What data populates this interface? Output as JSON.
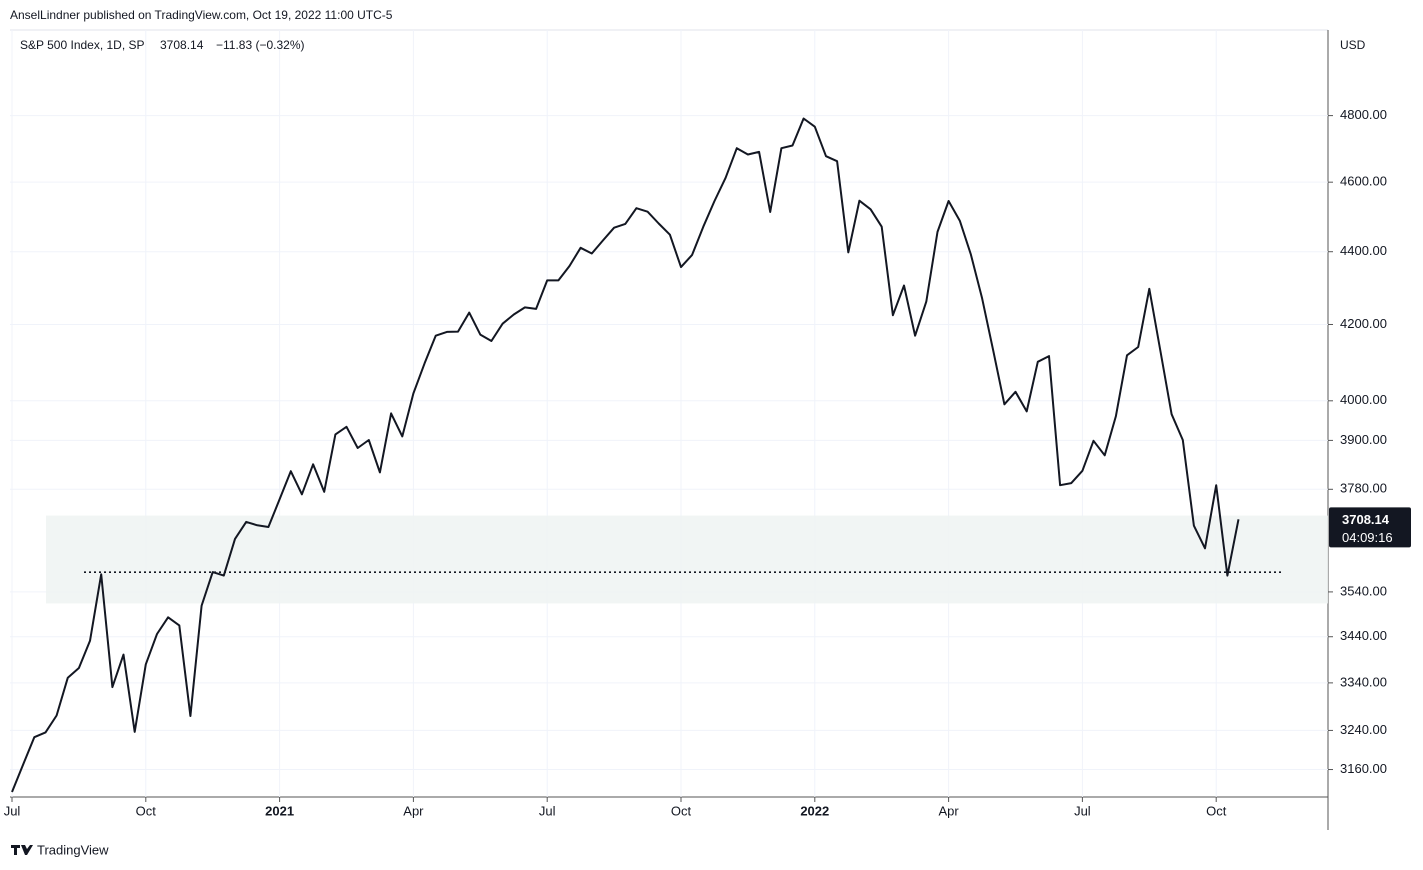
{
  "chart_data": {
    "type": "line",
    "header": "AnselLindner published on TradingView.com, Oct 19, 2022 11:00 UTC-5",
    "legend_change": "−11.83 (−0.32%)",
    "currency": "USD",
    "countdown": "04:09:16",
    "brand": "TradingView",
    "log_scale": true,
    "grid": true,
    "zone": [
      3514,
      3717
    ],
    "support_level": 3585,
    "categories": [
      "Jul",
      null,
      null,
      null,
      null,
      null,
      null,
      null,
      null,
      null,
      null,
      null,
      "Oct",
      null,
      null,
      null,
      null,
      null,
      null,
      null,
      null,
      null,
      null,
      null,
      "2021",
      null,
      null,
      null,
      null,
      null,
      null,
      null,
      null,
      null,
      null,
      null,
      "Apr",
      null,
      null,
      null,
      null,
      null,
      null,
      null,
      null,
      null,
      null,
      null,
      "Jul",
      null,
      null,
      null,
      null,
      null,
      null,
      null,
      null,
      null,
      null,
      null,
      "Oct",
      null,
      null,
      null,
      null,
      null,
      null,
      null,
      null,
      null,
      null,
      null,
      "2022",
      null,
      null,
      null,
      null,
      null,
      null,
      null,
      null,
      null,
      null,
      null,
      "Apr",
      null,
      null,
      null,
      null,
      null,
      null,
      null,
      null,
      null,
      null,
      null,
      "Jul",
      null,
      null,
      null,
      null,
      null,
      null,
      null,
      null,
      null,
      null,
      null,
      "Oct",
      null,
      null,
      null,
      null,
      null,
      null,
      null,
      null,
      null
    ],
    "series": [
      {
        "name": "S&P 500 Index, 1D, SP",
        "color": "#131722",
        "values": [
          3115,
          3170,
          3226,
          3236,
          3271,
          3351,
          3372,
          3431,
          3580,
          3331,
          3401,
          3237,
          3380,
          3446,
          3483,
          3465,
          3270,
          3509,
          3585,
          3577,
          3662,
          3702,
          3694,
          3690,
          3756,
          3824,
          3768,
          3841,
          3774,
          3915,
          3934,
          3881,
          3901,
          3821,
          3968,
          3910,
          4019,
          4097,
          4170,
          4180,
          4181,
          4232,
          4173,
          4156,
          4202,
          4227,
          4246,
          4242,
          4320,
          4320,
          4360,
          4411,
          4395,
          4432,
          4468,
          4479,
          4524,
          4514,
          4480,
          4448,
          4357,
          4391,
          4471,
          4545,
          4613,
          4701,
          4682,
          4690,
          4513,
          4701,
          4709,
          4791,
          4766,
          4677,
          4662,
          4398,
          4546,
          4521,
          4471,
          4225,
          4306,
          4170,
          4262,
          4456,
          4545,
          4488,
          4392,
          4271,
          4131,
          3991,
          4023,
          3973,
          4101,
          4116,
          3790,
          3795,
          3825,
          3899,
          3863,
          3961,
          4118,
          4140,
          4297,
          4128,
          3966,
          3901,
          3693,
          3640,
          3790,
          3577,
          3708.14,
          null,
          null,
          null,
          null,
          null,
          null,
          null
        ]
      }
    ],
    "ylim": [
      3105,
      5070
    ],
    "yticks": [
      {
        "value": 4800,
        "label": "4800.00"
      },
      {
        "value": 4600,
        "label": "4600.00"
      },
      {
        "value": 4400,
        "label": "4400.00"
      },
      {
        "value": 4200,
        "label": "4200.00"
      },
      {
        "value": 4000,
        "label": "4000.00"
      },
      {
        "value": 3900,
        "label": "3900.00"
      },
      {
        "value": 3780,
        "label": "3780.00"
      },
      {
        "value": 3540,
        "label": "3540.00"
      },
      {
        "value": 3440,
        "label": "3440.00"
      },
      {
        "value": 3340,
        "label": "3340.00"
      },
      {
        "value": 3240,
        "label": "3240.00"
      },
      {
        "value": 3160,
        "label": "3160.00"
      }
    ]
  }
}
